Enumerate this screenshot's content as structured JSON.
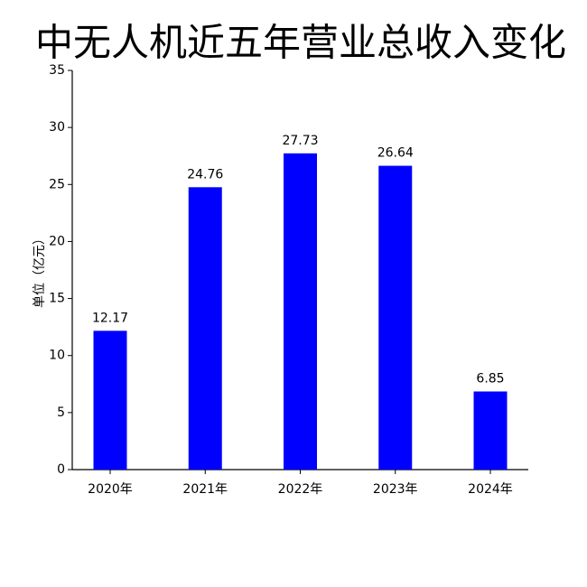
{
  "chart_data": {
    "type": "bar",
    "title": "中无人机近五年营业总收入变化",
    "y_label": "单位（亿元）",
    "categories": [
      "2020年",
      "2021年",
      "2022年",
      "2023年",
      "2024年"
    ],
    "values": [
      12.17,
      24.76,
      27.73,
      26.64,
      6.85
    ],
    "color": "#0000ff",
    "ylim": [
      0,
      35
    ],
    "yticks": [
      0,
      5,
      10,
      15,
      20,
      25,
      30,
      35
    ],
    "grid": false
  }
}
